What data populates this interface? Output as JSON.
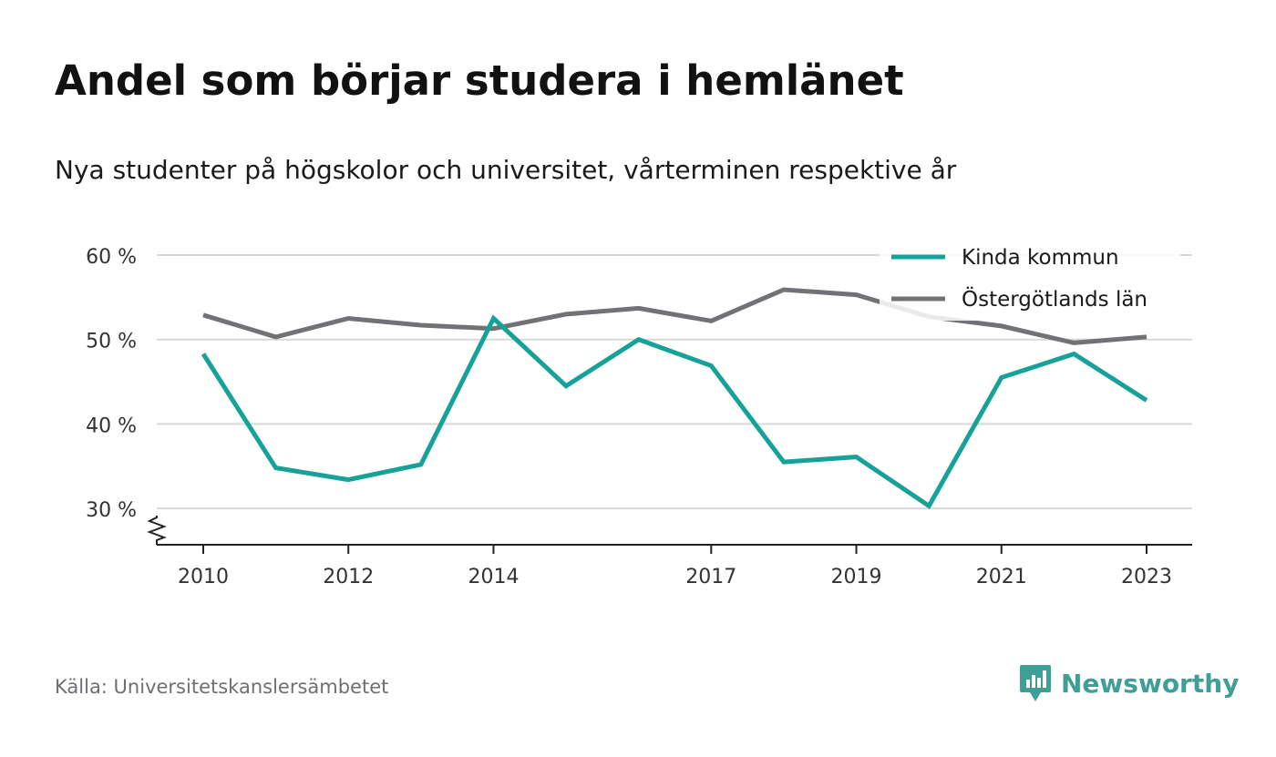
{
  "header": {
    "title": "Andel som börjar studera i hemlänet",
    "subtitle": "Nya studenter på högskolor och universitet, vårterminen respektive år"
  },
  "footer": {
    "source": "Källa: Universitetskanslersämbetet",
    "brand": "Newsworthy"
  },
  "colors": {
    "kinda": "#16a199",
    "ostergotland": "#717176",
    "grid": "#d9d9d9",
    "axis": "#222222",
    "brand": "#3f9e96"
  },
  "chart_data": {
    "type": "line",
    "x": [
      2010,
      2011,
      2012,
      2013,
      2014,
      2015,
      2016,
      2017,
      2018,
      2019,
      2020,
      2021,
      2022,
      2023
    ],
    "x_tick_labels": [
      "2010",
      "2012",
      "2014",
      "2017",
      "2019",
      "2021",
      "2023"
    ],
    "x_tick_values": [
      2010,
      2012,
      2014,
      2017,
      2019,
      2021,
      2023
    ],
    "y_tick_labels": [
      "30 %",
      "40 %",
      "50 %",
      "60 %"
    ],
    "y_tick_values": [
      30,
      40,
      50,
      60
    ],
    "ylim": [
      25.7,
      60
    ],
    "y_axis_break": true,
    "grid": true,
    "legend_position": "top-right",
    "series": [
      {
        "name": "Kinda kommun",
        "color": "#16a199",
        "values": [
          48.3,
          34.8,
          33.4,
          35.2,
          52.5,
          44.5,
          50.0,
          46.9,
          35.5,
          36.1,
          30.3,
          45.5,
          48.3,
          42.8
        ]
      },
      {
        "name": "Östergötlands län",
        "color": "#717176",
        "values": [
          52.9,
          50.3,
          52.5,
          51.7,
          51.3,
          53.0,
          53.7,
          52.2,
          55.9,
          55.3,
          52.7,
          51.6,
          49.6,
          50.3
        ]
      }
    ]
  }
}
